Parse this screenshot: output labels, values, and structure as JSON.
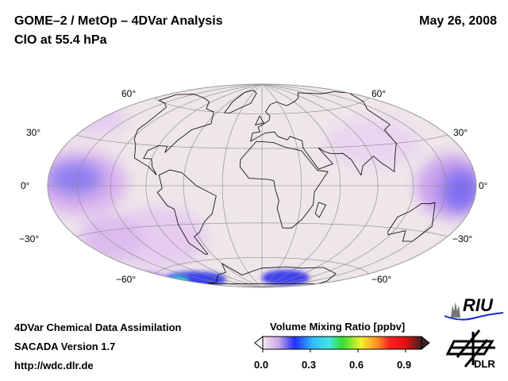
{
  "header": {
    "title": "GOME–2 / MetOp – 4DVar Analysis",
    "subtitle": "ClO at 55.4 hPa",
    "date": "May 26, 2008"
  },
  "map": {
    "projection": "Hammer",
    "center_longitude": 0,
    "lat_labels_left": [
      "60°",
      "30°",
      "0°",
      "−30°",
      "−60°"
    ],
    "lat_labels_right": [
      "60°",
      "30°",
      "0°",
      "−30°",
      "−60°"
    ],
    "background_color": "#efe6ea"
  },
  "footer": {
    "line1": "4DVar Chemical Data Assimilation",
    "line2": "SACADA Version 1.7",
    "line3": "http://wdc.dlr.de"
  },
  "colorbar": {
    "title": "Volume Mixing Ratio [ppbv]",
    "min": 0.0,
    "max": 1.0,
    "ticks": [
      "0.0",
      "0.3",
      "0.6",
      "0.9"
    ],
    "colors": [
      "#f3e6ee",
      "#c9a6e8",
      "#2030ff",
      "#30c0ff",
      "#40e8e0",
      "#30e030",
      "#f0f030",
      "#ff9020",
      "#ff2020",
      "#e01010",
      "#402020"
    ]
  },
  "logos": {
    "riu": "RIU",
    "dlr": "DLR"
  }
}
